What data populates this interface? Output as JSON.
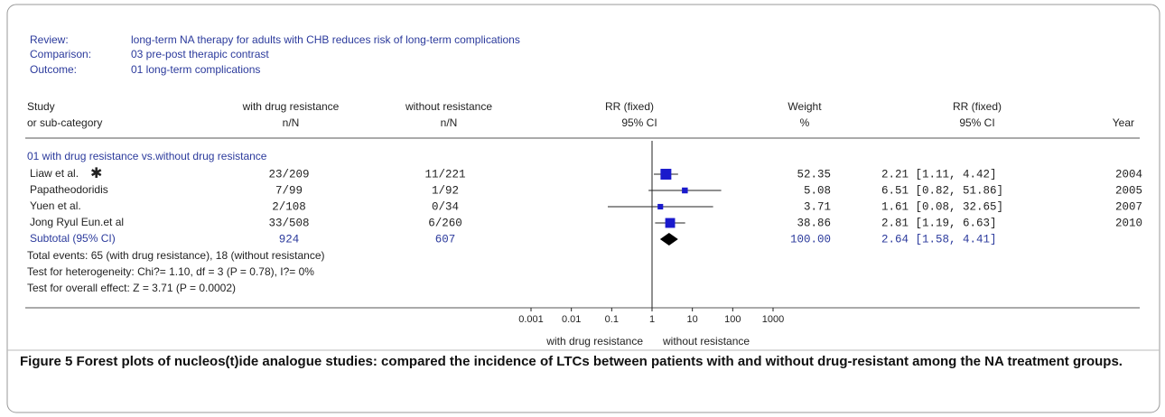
{
  "header": {
    "review_label": "Review:",
    "review": "long-term NA therapy  for adults with CHB reduces risk of long-term complications",
    "comparison_label": "Comparison:",
    "comparison": "03 pre-post therapic contrast",
    "outcome_label": "Outcome:",
    "outcome": "01 long-term complications"
  },
  "columns": {
    "study": [
      "Study",
      "or sub-category"
    ],
    "with": [
      "with drug resistance",
      "n/N"
    ],
    "without": [
      "without resistance",
      "n/N"
    ],
    "plot": [
      "RR (fixed)",
      "95% CI"
    ],
    "weight": [
      "Weight",
      "%"
    ],
    "ci": [
      "RR (fixed)",
      "95% CI"
    ],
    "year": "Year"
  },
  "chart_data": {
    "type": "forest",
    "subgroup": "01 with drug resistance vs.without drug resistance",
    "studies": [
      {
        "name": "Liaw et al.",
        "marker": "✱",
        "with": "23/209",
        "without": "11/221",
        "rr": 2.21,
        "lower": 1.11,
        "upper": 4.42,
        "weight": 52.35,
        "ci_label": "2.21 [1.11, 4.42]",
        "year": "2004"
      },
      {
        "name": "Papatheodoridis",
        "with": "7/99",
        "without": "1/92",
        "rr": 6.51,
        "lower": 0.82,
        "upper": 51.86,
        "weight": 5.08,
        "ci_label": "6.51 [0.82, 51.86]",
        "year": "2005"
      },
      {
        "name": "Yuen et al.",
        "with": "2/108",
        "without": "0/34",
        "rr": 1.61,
        "lower": 0.08,
        "upper": 32.65,
        "weight": 3.71,
        "ci_label": "1.61 [0.08, 32.65]",
        "year": "2007"
      },
      {
        "name": "Jong Ryul Eun.et al",
        "with": "33/508",
        "without": "6/260",
        "rr": 2.81,
        "lower": 1.19,
        "upper": 6.63,
        "weight": 38.86,
        "ci_label": "2.81 [1.19, 6.63]",
        "year": "2010"
      }
    ],
    "subtotal": {
      "name": "Subtotal (95% CI)",
      "with": 924,
      "without": 607,
      "rr": 2.64,
      "lower": 1.58,
      "upper": 4.41,
      "weight": 100,
      "weight_label": "100.00",
      "ci_label": "2.64 [1.58, 4.41]"
    },
    "notes": [
      "Total events: 65 (with drug resistance), 18 (without resistance)",
      "Test for heterogeneity: Chi?= 1.10, df = 3 (P = 0.78), I?= 0%",
      "Test for overall effect: Z = 3.71 (P = 0.0002)"
    ],
    "log": true,
    "xlim": [
      0.001,
      1000
    ],
    "xticks": [
      0.001,
      0.01,
      0.1,
      1,
      10,
      100,
      1000
    ],
    "null_line": 1,
    "favours_left": "with drug resistance",
    "favours_right": "without resistance",
    "color": "#1a1acc"
  },
  "caption": {
    "label": "Figure 5",
    "text": "Forest plots of nucleos(t)ide analogue studies: compared the incidence of LTCs between patients with and without drug-resistant among the NA treatment groups."
  }
}
